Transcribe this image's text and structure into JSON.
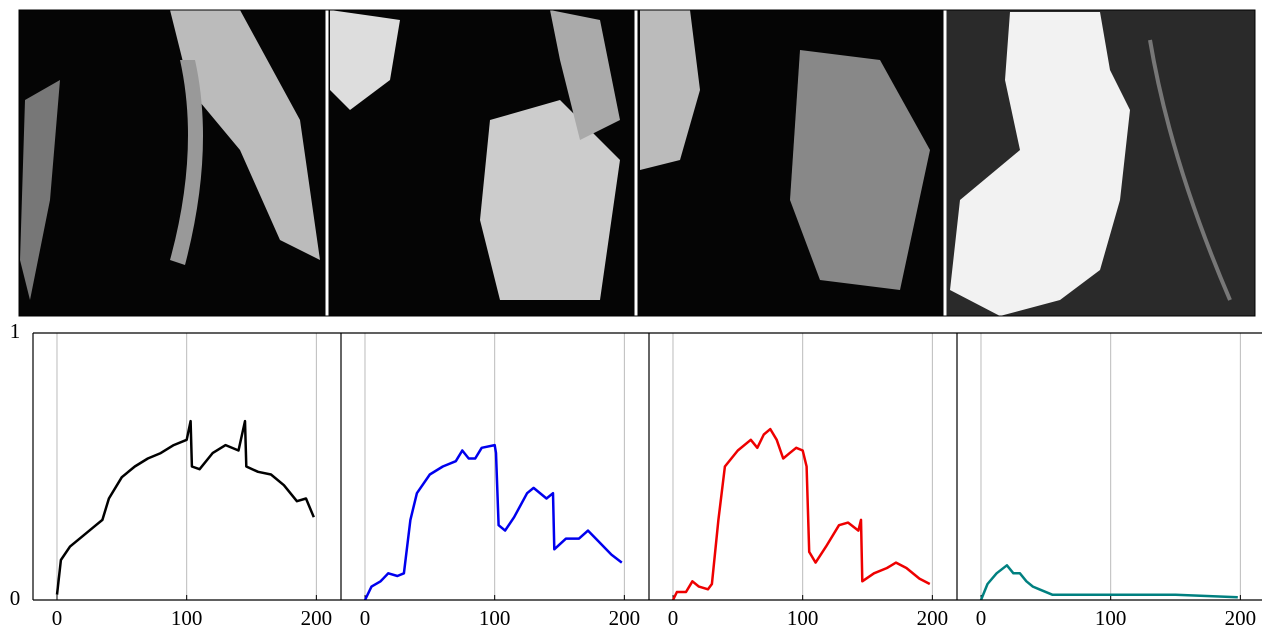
{
  "chart_data": [
    {
      "type": "line",
      "color": "#000000",
      "x": [
        0,
        3,
        10,
        20,
        30,
        35,
        40,
        50,
        60,
        70,
        80,
        90,
        100,
        103,
        104,
        110,
        120,
        130,
        140,
        145,
        146,
        155,
        165,
        175,
        185,
        192,
        198
      ],
      "values": [
        0.02,
        0.15,
        0.2,
        0.24,
        0.28,
        0.3,
        0.38,
        0.46,
        0.5,
        0.53,
        0.55,
        0.58,
        0.6,
        0.67,
        0.5,
        0.49,
        0.55,
        0.58,
        0.56,
        0.67,
        0.5,
        0.48,
        0.47,
        0.43,
        0.37,
        0.38,
        0.31
      ],
      "xlim": [
        -18.5,
        219
      ],
      "xticks": [
        0,
        100,
        200
      ],
      "ylim": [
        0,
        1
      ],
      "yticks": [
        0,
        1
      ],
      "grid": true
    },
    {
      "type": "line",
      "color": "#0000ee",
      "x": [
        0,
        5,
        12,
        18,
        25,
        30,
        35,
        40,
        50,
        60,
        70,
        75,
        80,
        85,
        90,
        100,
        101,
        103,
        108,
        115,
        125,
        130,
        140,
        145,
        146,
        155,
        165,
        172,
        180,
        190,
        198
      ],
      "values": [
        0,
        0.05,
        0.07,
        0.1,
        0.09,
        0.1,
        0.3,
        0.4,
        0.47,
        0.5,
        0.52,
        0.56,
        0.53,
        0.53,
        0.57,
        0.58,
        0.55,
        0.28,
        0.26,
        0.31,
        0.4,
        0.42,
        0.38,
        0.4,
        0.19,
        0.23,
        0.23,
        0.26,
        0.22,
        0.17,
        0.14
      ],
      "xlim": [
        -18.5,
        219
      ],
      "xticks": [
        0,
        100,
        200
      ],
      "ylim": [
        0,
        1
      ],
      "grid": true
    },
    {
      "type": "line",
      "color": "#ee0000",
      "x": [
        0,
        3,
        10,
        15,
        20,
        27,
        30,
        35,
        40,
        50,
        60,
        65,
        70,
        75,
        80,
        85,
        90,
        95,
        100,
        103,
        105,
        110,
        118,
        128,
        135,
        143,
        145,
        146,
        155,
        165,
        172,
        180,
        190,
        198
      ],
      "values": [
        0,
        0.03,
        0.03,
        0.07,
        0.05,
        0.04,
        0.06,
        0.3,
        0.5,
        0.56,
        0.6,
        0.57,
        0.62,
        0.64,
        0.6,
        0.53,
        0.55,
        0.57,
        0.56,
        0.5,
        0.18,
        0.14,
        0.2,
        0.28,
        0.29,
        0.26,
        0.3,
        0.07,
        0.1,
        0.12,
        0.14,
        0.12,
        0.08,
        0.06
      ],
      "xlim": [
        -18.5,
        219
      ],
      "xticks": [
        0,
        100,
        200
      ],
      "ylim": [
        0,
        1
      ],
      "grid": true
    },
    {
      "type": "line",
      "color": "#008080",
      "x": [
        0,
        5,
        12,
        20,
        25,
        30,
        35,
        40,
        45,
        55,
        70,
        85,
        100,
        120,
        150,
        198
      ],
      "values": [
        0,
        0.06,
        0.1,
        0.13,
        0.1,
        0.1,
        0.07,
        0.05,
        0.04,
        0.02,
        0.02,
        0.02,
        0.02,
        0.02,
        0.02,
        0.01
      ],
      "xlim": [
        -18.5,
        219
      ],
      "xticks": [
        0,
        100,
        200
      ],
      "ylim": [
        0,
        1
      ],
      "grid": true
    }
  ]
}
